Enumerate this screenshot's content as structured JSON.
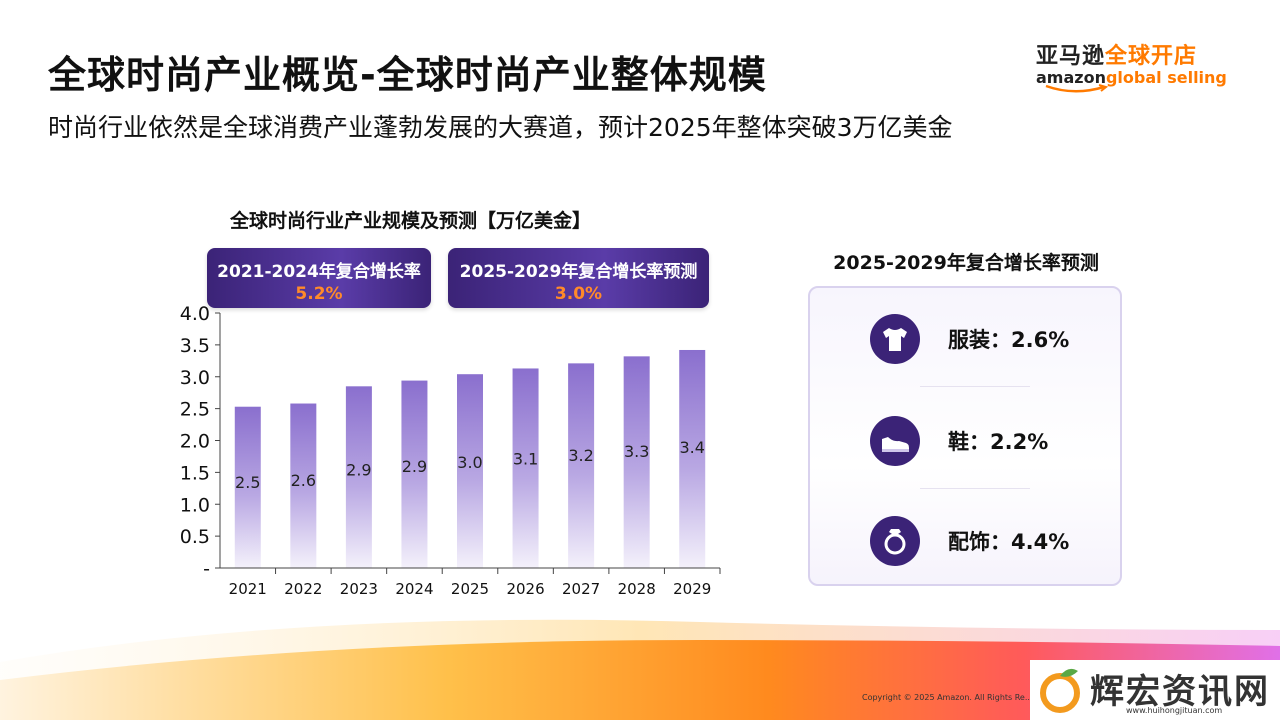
{
  "header": {
    "title": "全球时尚产业概览-全球时尚产业整体规模",
    "subtitle": "时尚行业依然是全球消费产业蓬勃发展的大赛道，预计2025年整体突破3万亿美金"
  },
  "logo": {
    "cn_part1": "亚马逊",
    "cn_part2": "全球开店",
    "en_part1": "amazon",
    "en_part2": "global selling"
  },
  "cagr_boxes": [
    {
      "label": "2021-2024年复合增长率",
      "value": "5.2%"
    },
    {
      "label": "2025-2029年复合增长率预测",
      "value": "3.0%"
    }
  ],
  "chart_data": {
    "type": "bar",
    "title": "全球时尚行业产业规模及预测【万亿美金】",
    "categories": [
      "2021",
      "2022",
      "2023",
      "2024",
      "2025",
      "2026",
      "2027",
      "2028",
      "2029"
    ],
    "values": [
      2.5,
      2.6,
      2.9,
      2.9,
      3.0,
      3.1,
      3.2,
      3.3,
      3.4
    ],
    "heights": [
      2.53,
      2.58,
      2.85,
      2.94,
      3.04,
      3.13,
      3.21,
      3.32,
      3.42
    ],
    "ylim": [
      0,
      4.0
    ],
    "yticks": [
      "-",
      "0.5",
      "1.0",
      "1.5",
      "2.0",
      "2.5",
      "3.0",
      "3.5",
      "4.0"
    ],
    "bar_color": "#8a6fce",
    "grid": false
  },
  "panel": {
    "title": "2025-2029年复合增长率预测",
    "items": [
      {
        "icon": "tshirt-icon",
        "label": "服装：2.6%"
      },
      {
        "icon": "shoe-icon",
        "label": "鞋：2.2%"
      },
      {
        "icon": "ring-icon",
        "label": "配饰：4.4%"
      }
    ]
  },
  "footer": {
    "copyright": "Copyright © 2025 Amazon. All Rights Re..."
  },
  "watermark": {
    "text": "辉宏资讯网",
    "url": "www.huihongjituan.com"
  }
}
